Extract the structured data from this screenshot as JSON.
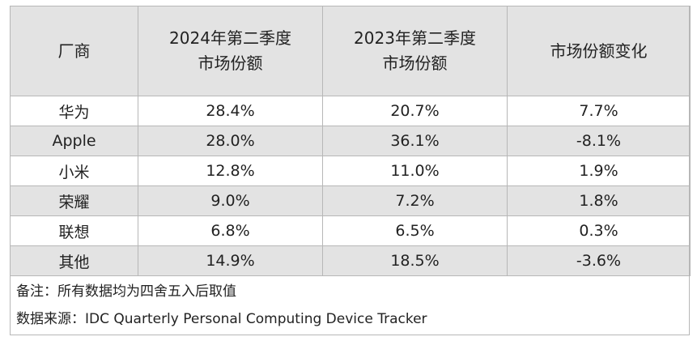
{
  "table": {
    "headers": [
      "厂商",
      "2024年第二季度\n市场份额",
      "2023年第二季度\n市场份额",
      "市场份额变化"
    ],
    "rows": [
      [
        "华为",
        "28.4%",
        "20.7%",
        "7.7%"
      ],
      [
        "Apple",
        "28.0%",
        "36.1%",
        "-8.1%"
      ],
      [
        "小米",
        "12.8%",
        "11.0%",
        "1.9%"
      ],
      [
        "荣耀",
        "9.0%",
        "7.2%",
        "1.8%"
      ],
      [
        "联想",
        "6.8%",
        "6.5%",
        "0.3%"
      ],
      [
        "其他",
        "14.9%",
        "18.5%",
        "-3.6%"
      ]
    ],
    "shaded_rows": [
      false,
      true,
      false,
      true,
      false,
      true
    ],
    "shade_color": "#e3e3e3",
    "border_color": "#b7b7b7"
  },
  "notes": {
    "remark": "备注：所有数据均为四舍五入后取值",
    "source": "数据来源：IDC Quarterly Personal Computing Device Tracker"
  }
}
